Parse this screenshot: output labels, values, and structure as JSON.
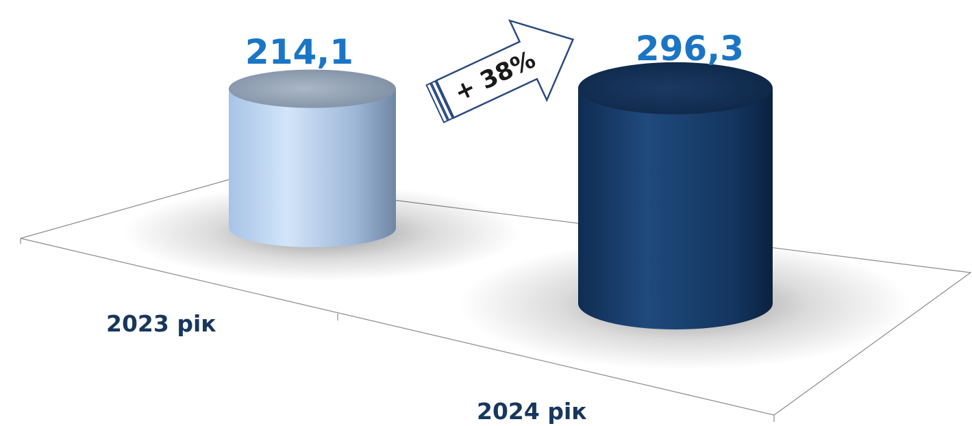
{
  "chart_data": {
    "type": "bar",
    "style": "3d-cylinder",
    "categories": [
      "2023 рік",
      "2024 рік"
    ],
    "values": [
      214.1,
      296.3
    ],
    "value_labels": [
      "214,1",
      "296,3"
    ],
    "change_label": "+ 38%",
    "title": "",
    "xlabel": "",
    "ylabel": "",
    "ylim": [
      0,
      300
    ],
    "grid": false,
    "legend": "none"
  },
  "colors": {
    "value_text": "#1b75c5",
    "category_text": "#17375e",
    "bar_2023": "#a9c5e8",
    "bar_2024": "#163a66",
    "arrow_stroke": "#2a4a80",
    "floor_line": "#8a8a8a"
  }
}
